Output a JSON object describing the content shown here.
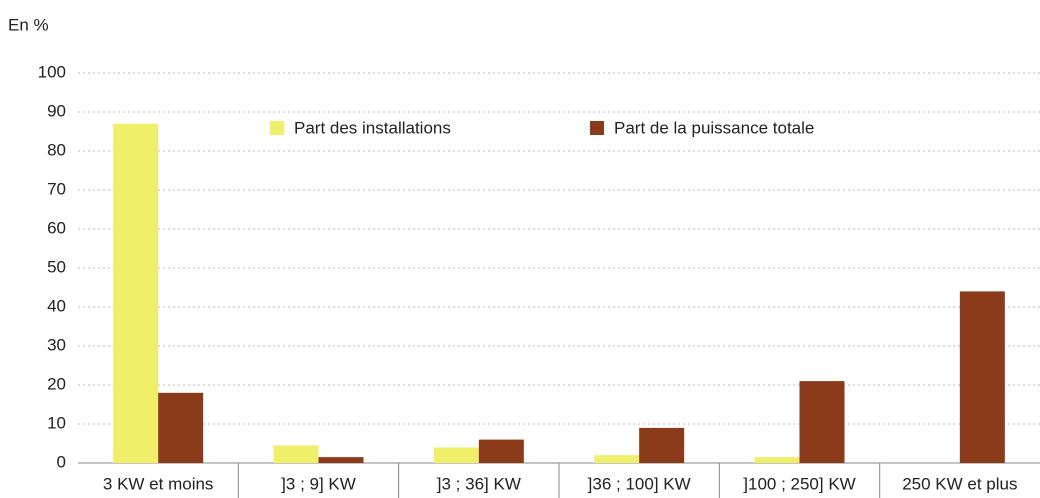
{
  "chart_data": {
    "type": "bar",
    "y_label": "En %",
    "categories": [
      "3 KW et moins",
      "]3 ; 9] KW",
      "]3 ; 36] KW",
      "]36 ; 100] KW",
      "]100 ; 250] KW",
      "250 KW et plus"
    ],
    "series": [
      {
        "name": "Part des installations",
        "color": "#f0ef6a",
        "values": [
          87,
          4.5,
          4,
          2,
          1.5,
          0
        ]
      },
      {
        "name": "Part de la puissance totale",
        "color": "#8b3a1a",
        "values": [
          18,
          1.5,
          6,
          9,
          21,
          44
        ]
      }
    ],
    "ylim": [
      0,
      100
    ],
    "yticks": [
      0,
      10,
      20,
      30,
      40,
      50,
      60,
      70,
      80,
      90,
      100
    ],
    "grid": true
  }
}
